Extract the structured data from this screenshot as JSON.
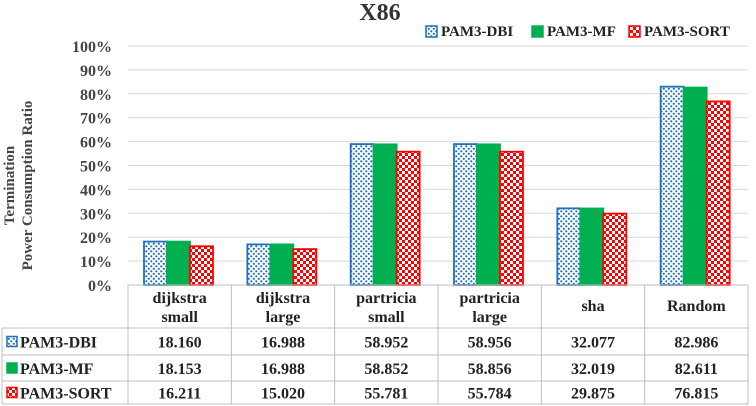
{
  "chart_data": {
    "type": "bar",
    "title": "X86",
    "xlabel": "",
    "ylabel": [
      "Termination",
      "Power Consumption Ratio"
    ],
    "ylim": [
      0,
      100
    ],
    "yticks": [
      "0%",
      "10%",
      "20%",
      "30%",
      "40%",
      "50%",
      "60%",
      "70%",
      "80%",
      "90%",
      "100%"
    ],
    "grid": true,
    "legend_position": "top-right",
    "categories": [
      [
        "dijkstra",
        "small"
      ],
      [
        "dijkstra",
        "large"
      ],
      [
        "partricia",
        "small"
      ],
      [
        "partricia",
        "large"
      ],
      [
        "sha"
      ],
      [
        "Random"
      ]
    ],
    "series": [
      {
        "name": "PAM3-DBI",
        "values": [
          18.16,
          16.988,
          58.952,
          58.956,
          32.077,
          82.986
        ],
        "labels": [
          "18.160",
          "16.988",
          "58.952",
          "58.956",
          "32.077",
          "82.986"
        ],
        "color": "#1f6fbf",
        "pattern": "dots"
      },
      {
        "name": "PAM3-MF",
        "values": [
          18.153,
          16.988,
          58.852,
          58.856,
          32.019,
          82.611
        ],
        "labels": [
          "18.153",
          "16.988",
          "58.852",
          "58.856",
          "32.019",
          "82.611"
        ],
        "color": "#00b050",
        "pattern": "solid"
      },
      {
        "name": "PAM3-SORT",
        "values": [
          16.211,
          15.02,
          55.781,
          55.784,
          29.875,
          76.815
        ],
        "labels": [
          "16.211",
          "15.020",
          "55.781",
          "55.784",
          "29.875",
          "76.815"
        ],
        "color": "#ff0000",
        "pattern": "checker"
      }
    ]
  }
}
